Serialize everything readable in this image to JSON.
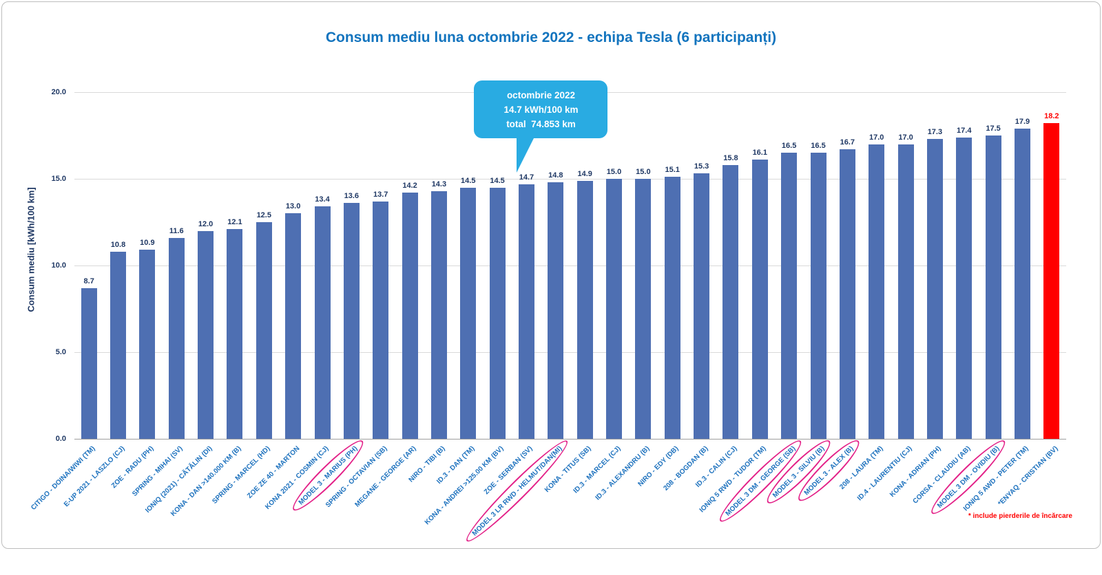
{
  "colors": {
    "bar": "#4E6FB2",
    "bar-highlight": "#FF0000",
    "title": "#1274BE",
    "axis-text": "#1F3864",
    "xlabel": "#1E72BE",
    "grid": "#D9D9D9",
    "axis-line": "#9E9E9E",
    "callout-bg": "#29ABE2",
    "callout-text": "#FFFFFF",
    "circle": "#E32188",
    "footnote": "#FF0000",
    "frame-border": "#BDBDBD"
  },
  "page": {
    "footnote": "* include pierderile de încărcare"
  },
  "callout": {
    "line1": "octombrie 2022",
    "line2": "14.7 kWh/100 km",
    "line3": "total  74.853 km",
    "anchor_index": 15
  },
  "chart_data": {
    "type": "bar",
    "title": "Consum mediu luna octombrie 2022 - echipa Tesla (6 participanți)",
    "ylabel": "Consum mediu [kWh/100 km]",
    "xlabel": "",
    "ylim": [
      0,
      21
    ],
    "yticks": [
      0,
      5,
      10,
      15,
      20
    ],
    "grid": true,
    "legend": "none",
    "categories": [
      "CITIGO - DOINA/WIWI (TM)",
      "E-UP 2021 - LASZLO (CJ)",
      "ZOE - RADU (PH)",
      "SPRING - MIHAI (SV)",
      "IONIQ (2021) - CĂTĂLIN (DI)",
      "KONA - DAN >140.000 KM (B)",
      "SPRING - MARCEL (HD)",
      "ZOE ZE 40 - MARTON",
      "KONA 2021 - COSMIN (CJ)",
      "MODEL 3 - MARIUS (PH)",
      "SPRING - OCTAVIAN (SB)",
      "MEGANE - GEORGE (AR)",
      "NIRO - TIBI (B)",
      "ID.3 - DAN (TM)",
      "KONA - ANDREI >125.00 KM (BV)",
      "ZOE - SERBAN (SV)",
      "MODEL 3 LR RWD - HELMUT/DAN(MI)",
      "KONA - TITUS (SB)",
      "ID.3 - MARCEL (CJ)",
      "ID.3 - ALEXANDRU (B)",
      "NIRO - EDY (DB)",
      "208 - BOGDAN (B)",
      "ID.3 - CALIN (CJ)",
      "IONIQ 5 RWD - TUDOR (TM)",
      "MODEL 3 DM - GEORGE (SB)",
      "MODEL 3 - SILVIU (B)",
      "MODEL 3 - ALEX (B)",
      "208 - LAURA (TM)",
      "ID.4 - LAURENTIU (CJ)",
      "KONA - ADRIAN (PH)",
      "CORSA - CLAUDIU (AB)",
      "MODEL 3 DM - OVIDIU (B)",
      "IONIQ 5 AWD - PETER (TM)",
      "*ENYAQ - CRISTIAN (BV)"
    ],
    "values": [
      8.7,
      10.8,
      10.9,
      11.6,
      12.0,
      12.1,
      12.5,
      13.0,
      13.4,
      13.6,
      13.7,
      14.2,
      14.3,
      14.5,
      14.5,
      14.7,
      14.8,
      14.9,
      15.0,
      15.0,
      15.1,
      15.3,
      15.8,
      16.1,
      16.5,
      16.5,
      16.7,
      17.0,
      17.0,
      17.3,
      17.4,
      17.5,
      17.9,
      18.2
    ],
    "highlight_index": 33,
    "circled_indices": [
      9,
      16,
      24,
      25,
      26,
      31
    ]
  }
}
